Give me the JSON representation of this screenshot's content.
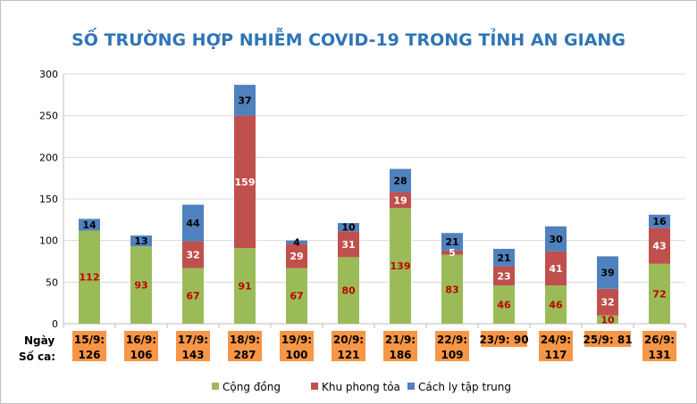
{
  "chart_data": {
    "type": "bar",
    "stacked": true,
    "title": "SỐ TRƯỜNG HỢP NHIỄM COVID-19 TRONG TỈNH AN GIANG",
    "ylim": [
      0,
      300
    ],
    "yticks": [
      0,
      50,
      100,
      150,
      200,
      250,
      300
    ],
    "grid": true,
    "row_labels": [
      "Ngày",
      "Số ca:"
    ],
    "categories": [
      "15/9:",
      "16/9:",
      "17/9:",
      "18/9:",
      "19/9:",
      "20/9:",
      "21/9:",
      "22/9:",
      "23/9: 90",
      "24/9:",
      "25/9: 81",
      "26/9:"
    ],
    "totals_text": [
      "126",
      "106",
      "143",
      "287",
      "100",
      "121",
      "186",
      "109",
      "",
      "117",
      "",
      "131"
    ],
    "series": [
      {
        "name": "Cộng đồng",
        "color": "#9bbb59",
        "label_color": "#c00000",
        "values": [
          112,
          93,
          67,
          91,
          67,
          80,
          139,
          83,
          46,
          46,
          10,
          72
        ],
        "labels": [
          "112",
          "93",
          "67",
          "91",
          "67",
          "80",
          "139",
          "83",
          "46",
          "46",
          "10",
          "72"
        ]
      },
      {
        "name": "Khu phong tỏa",
        "color": "#c0504d",
        "label_color": "#ffffff",
        "values": [
          0,
          0,
          32,
          159,
          29,
          31,
          19,
          5,
          23,
          41,
          32,
          43
        ],
        "labels": [
          "",
          "",
          "32",
          "159",
          "29",
          "31",
          "19",
          "5",
          "23",
          "41",
          "32",
          "43"
        ]
      },
      {
        "name": "Cách ly tập trung",
        "color": "#4f81bd",
        "label_color": "#000000",
        "values": [
          14,
          13,
          44,
          37,
          4,
          10,
          28,
          21,
          21,
          30,
          39,
          16
        ],
        "labels": [
          "14",
          "13",
          "44",
          "37",
          "4",
          "10",
          "28",
          "21",
          "21",
          "30",
          "39",
          "16"
        ]
      }
    ],
    "legend_position": "bottom"
  }
}
